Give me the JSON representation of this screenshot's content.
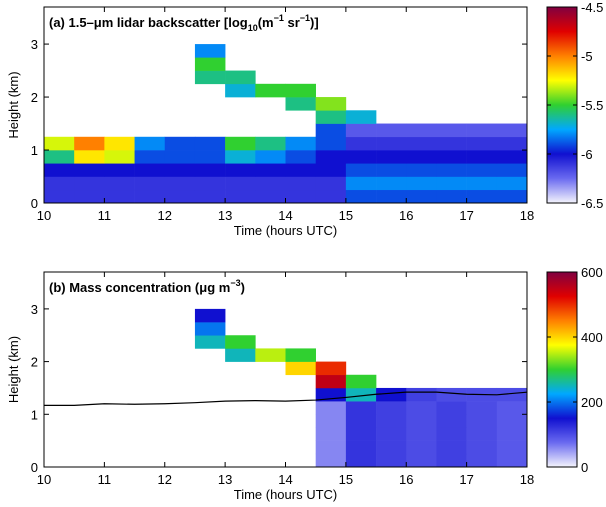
{
  "chart_data": [
    {
      "type": "heatmap",
      "title_parts": [
        "(a) 1.5–μm lidar backscatter [log",
        "10",
        "(m",
        "−1",
        " sr",
        "−1",
        ")]"
      ],
      "xlabel": "Time (hours UTC)",
      "ylabel": "Height (km)",
      "xlim": [
        10,
        18
      ],
      "xticks": [
        10,
        11,
        12,
        13,
        14,
        15,
        16,
        17,
        18
      ],
      "ylim": [
        0,
        3.7
      ],
      "yticks": [
        0,
        1,
        2,
        3
      ],
      "x_edges": [
        10,
        10.5,
        11,
        11.5,
        12,
        12.5,
        13,
        13.5,
        14,
        14.5,
        15,
        15.5,
        16,
        16.5,
        17,
        17.5,
        18
      ],
      "y_edges": [
        0,
        0.25,
        0.5,
        0.75,
        1,
        1.25,
        1.5,
        1.75,
        2,
        2.25,
        2.5,
        2.75,
        3
      ],
      "z": [
        [
          -6.1,
          -6.1,
          -6.1,
          -6.1,
          -6.1,
          -6.1,
          -6.1,
          -6.1,
          -6.1,
          -6.1,
          -5.9,
          -5.9,
          -5.9,
          -5.9,
          -5.9,
          -5.9
        ],
        [
          -6.1,
          -6.1,
          -6.1,
          -6.1,
          -6.1,
          -6.1,
          -6.1,
          -6.1,
          -6.1,
          -6.1,
          -5.8,
          -5.8,
          -5.8,
          -5.8,
          -5.8,
          -5.8
        ],
        [
          -6.0,
          -6.0,
          -6.0,
          -6.0,
          -6.0,
          -6.0,
          -6.0,
          -6.0,
          -6.0,
          -6.0,
          -5.9,
          -5.9,
          -5.9,
          -5.9,
          -5.9,
          -5.9
        ],
        [
          -5.6,
          -5.2,
          -5.3,
          -5.9,
          -5.9,
          -5.9,
          -5.7,
          -5.8,
          -5.9,
          -6.0,
          -6.0,
          -6.0,
          -6.0,
          -6.0,
          -6.0,
          -6.0
        ],
        [
          -5.3,
          -5.0,
          -5.2,
          -5.8,
          -5.9,
          -5.9,
          -5.5,
          -5.6,
          -5.8,
          -5.9,
          -6.1,
          -6.1,
          -6.1,
          -6.1,
          -6.1,
          -6.1
        ],
        [
          null,
          null,
          null,
          null,
          null,
          null,
          null,
          null,
          null,
          -5.9,
          -6.2,
          -6.2,
          -6.2,
          -6.2,
          -6.2,
          -6.2
        ],
        [
          null,
          null,
          null,
          null,
          null,
          null,
          null,
          null,
          null,
          -5.6,
          -5.7,
          null,
          null,
          null,
          null,
          null
        ],
        [
          null,
          null,
          null,
          null,
          null,
          null,
          null,
          null,
          -5.6,
          -5.4,
          null,
          null,
          null,
          null,
          null,
          null
        ],
        [
          null,
          null,
          null,
          null,
          null,
          null,
          -5.7,
          -5.5,
          -5.5,
          null,
          null,
          null,
          null,
          null,
          null,
          null
        ],
        [
          null,
          null,
          null,
          null,
          null,
          -5.6,
          -5.6,
          null,
          null,
          null,
          null,
          null,
          null,
          null,
          null,
          null
        ],
        [
          null,
          null,
          null,
          null,
          null,
          -5.5,
          null,
          null,
          null,
          null,
          null,
          null,
          null,
          null,
          null,
          null
        ],
        [
          null,
          null,
          null,
          null,
          null,
          -5.8,
          null,
          null,
          null,
          null,
          null,
          null,
          null,
          null,
          null,
          null
        ]
      ],
      "colormap": [
        "#f4f4fc",
        "#6a6af0",
        "#1010d0",
        "#00a8ff",
        "#30d030",
        "#ffff00",
        "#ff8000",
        "#e00000",
        "#800040"
      ],
      "clim": [
        -6.5,
        -4.5
      ],
      "cticks": [
        -6.5,
        -6,
        -5.5,
        -5,
        -4.5
      ]
    },
    {
      "type": "heatmap",
      "title_parts": [
        "(b) Mass concentration (μg m",
        "−3",
        ")"
      ],
      "xlabel": "Time (hours UTC)",
      "ylabel": "Height (km)",
      "xlim": [
        10,
        18
      ],
      "xticks": [
        10,
        11,
        12,
        13,
        14,
        15,
        16,
        17,
        18
      ],
      "ylim": [
        0,
        3.7
      ],
      "yticks": [
        0,
        1,
        2,
        3
      ],
      "x_edges": [
        10,
        10.5,
        11,
        11.5,
        12,
        12.5,
        13,
        13.5,
        14,
        14.5,
        15,
        15.5,
        16,
        16.5,
        17,
        17.5,
        18
      ],
      "y_edges": [
        0,
        0.25,
        0.5,
        0.75,
        1,
        1.25,
        1.5,
        1.75,
        2,
        2.25,
        2.5,
        2.75,
        3
      ],
      "z": [
        [
          null,
          null,
          null,
          null,
          null,
          null,
          null,
          null,
          null,
          60,
          120,
          110,
          100,
          110,
          100,
          90
        ],
        [
          null,
          null,
          null,
          null,
          null,
          null,
          null,
          null,
          null,
          60,
          120,
          110,
          100,
          110,
          100,
          90
        ],
        [
          null,
          null,
          null,
          null,
          null,
          null,
          null,
          null,
          null,
          60,
          120,
          110,
          100,
          110,
          100,
          90
        ],
        [
          null,
          null,
          null,
          null,
          null,
          null,
          null,
          null,
          null,
          60,
          120,
          110,
          100,
          110,
          100,
          90
        ],
        [
          null,
          null,
          null,
          null,
          null,
          null,
          null,
          null,
          null,
          60,
          120,
          110,
          100,
          110,
          100,
          90
        ],
        [
          null,
          null,
          null,
          null,
          null,
          null,
          null,
          null,
          null,
          150,
          250,
          150,
          110,
          100,
          100,
          100
        ],
        [
          null,
          null,
          null,
          null,
          null,
          null,
          null,
          null,
          null,
          550,
          300,
          null,
          null,
          null,
          null,
          null
        ],
        [
          null,
          null,
          null,
          null,
          null,
          null,
          null,
          null,
          400,
          500,
          null,
          null,
          null,
          null,
          null,
          null
        ],
        [
          null,
          null,
          null,
          null,
          null,
          null,
          250,
          350,
          300,
          null,
          null,
          null,
          null,
          null,
          null,
          null
        ],
        [
          null,
          null,
          null,
          null,
          null,
          250,
          300,
          null,
          null,
          null,
          null,
          null,
          null,
          null,
          null,
          null
        ],
        [
          null,
          null,
          null,
          null,
          null,
          200,
          null,
          null,
          null,
          null,
          null,
          null,
          null,
          null,
          null,
          null
        ],
        [
          null,
          null,
          null,
          null,
          null,
          150,
          null,
          null,
          null,
          null,
          null,
          null,
          null,
          null,
          null,
          null
        ]
      ],
      "colormap": [
        "#f4f4fc",
        "#6a6af0",
        "#1010d0",
        "#00a8ff",
        "#30d030",
        "#ffff00",
        "#ff8000",
        "#e00000",
        "#800040"
      ],
      "clim": [
        0,
        600
      ],
      "cticks": [
        0,
        200,
        400,
        600
      ],
      "line": {
        "color": "#000000",
        "x": [
          10,
          10.5,
          11,
          11.5,
          12,
          12.5,
          13,
          13.5,
          14,
          14.5,
          15,
          15.5,
          16,
          16.5,
          17,
          17.5,
          18
        ],
        "y": [
          1.17,
          1.17,
          1.2,
          1.19,
          1.2,
          1.22,
          1.25,
          1.26,
          1.25,
          1.27,
          1.32,
          1.38,
          1.42,
          1.42,
          1.38,
          1.37,
          1.42
        ]
      }
    }
  ]
}
